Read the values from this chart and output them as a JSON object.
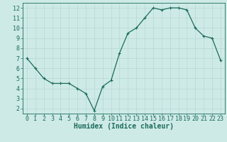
{
  "x": [
    0,
    1,
    2,
    3,
    4,
    5,
    6,
    7,
    8,
    9,
    10,
    11,
    12,
    13,
    14,
    15,
    16,
    17,
    18,
    19,
    20,
    21,
    22,
    23
  ],
  "y": [
    7.0,
    6.0,
    5.0,
    4.5,
    4.5,
    4.5,
    4.0,
    3.5,
    1.8,
    4.2,
    4.8,
    7.5,
    9.5,
    10.0,
    11.0,
    12.0,
    11.8,
    12.0,
    12.0,
    11.8,
    10.0,
    9.2,
    9.0,
    6.8
  ],
  "line_color": "#1a6b5a",
  "marker": "+",
  "marker_size": 3,
  "linewidth": 0.9,
  "xlabel": "Humidex (Indice chaleur)",
  "xlabel_fontsize": 7,
  "bg_color": "#ceeae7",
  "grid_color": "#b0d4d0",
  "tick_color": "#1a6b5a",
  "label_color": "#1a6b5a",
  "xlim": [
    -0.5,
    23.5
  ],
  "ylim": [
    1.5,
    12.5
  ],
  "xticks": [
    0,
    1,
    2,
    3,
    4,
    5,
    6,
    7,
    8,
    9,
    10,
    11,
    12,
    13,
    14,
    15,
    16,
    17,
    18,
    19,
    20,
    21,
    22,
    23
  ],
  "yticks": [
    2,
    3,
    4,
    5,
    6,
    7,
    8,
    9,
    10,
    11,
    12
  ],
  "tick_fontsize": 6
}
